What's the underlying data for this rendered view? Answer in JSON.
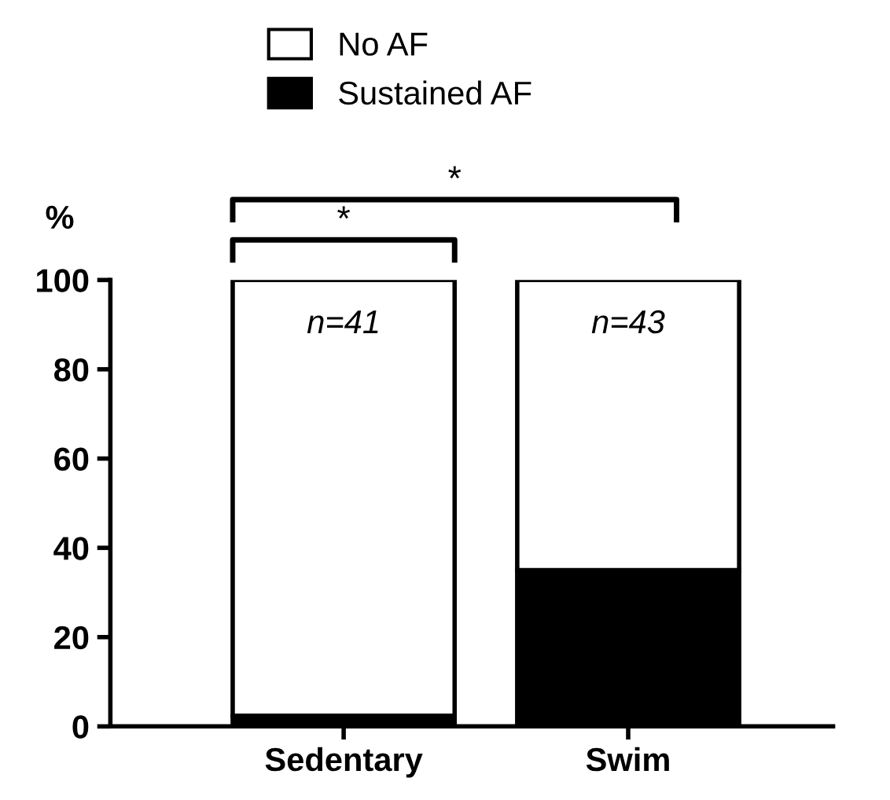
{
  "chart_data": {
    "type": "bar",
    "stacked": true,
    "ylabel": "%",
    "categories": [
      "Sedentary",
      "Swim"
    ],
    "series": [
      {
        "name": "Sustained AF",
        "color": "#000000",
        "values": [
          2.4,
          35
        ]
      },
      {
        "name": "No AF",
        "color": "#ffffff",
        "values": [
          97.6,
          65
        ]
      }
    ],
    "ylim": [
      0,
      100
    ],
    "yticks": [
      0,
      20,
      40,
      60,
      80,
      100
    ],
    "grid": false,
    "legend": "top",
    "annotations": [
      "n=41",
      "n=43",
      "*",
      "*"
    ]
  }
}
